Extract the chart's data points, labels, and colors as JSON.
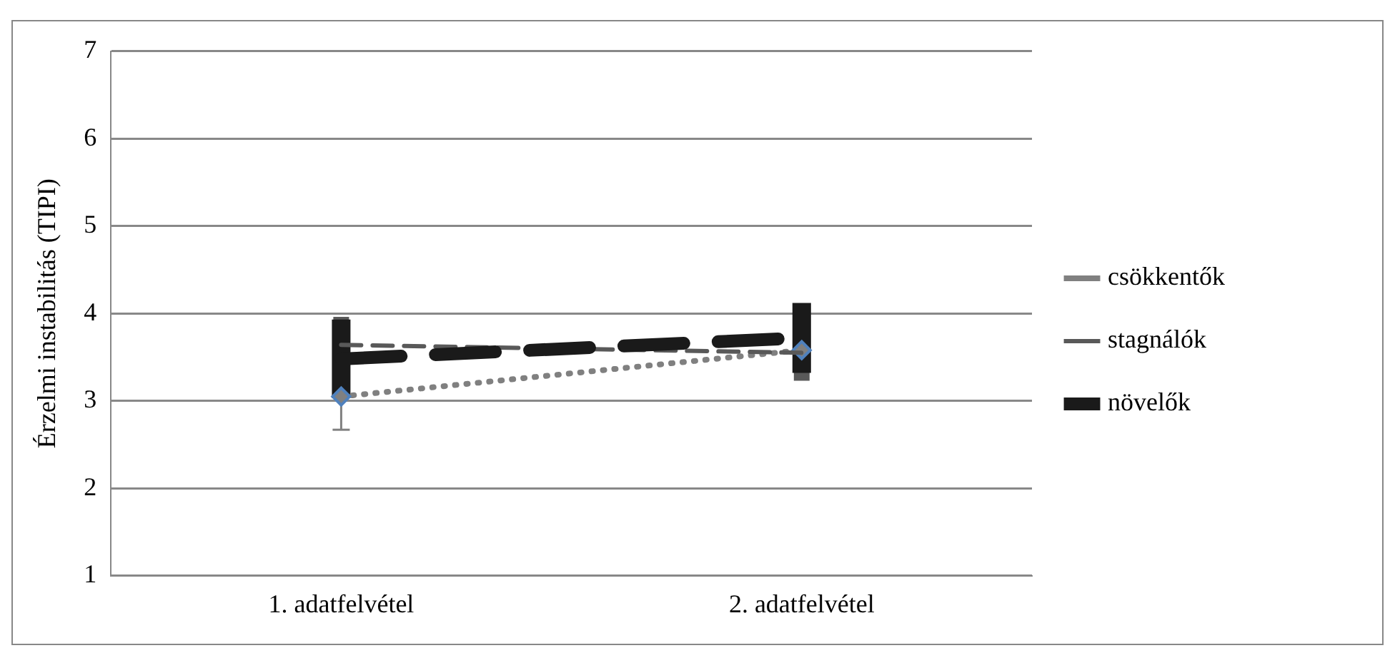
{
  "chart_data": {
    "type": "line",
    "ylabel": "Érzelmi instabilitás (TIPI)",
    "categories": [
      "1. adatfelvétel",
      "2. adatfelvétel"
    ],
    "series": [
      {
        "name": "csökkentők",
        "color": "#808080",
        "values": [
          3.05,
          3.58
        ],
        "errors": [
          0.38,
          null
        ],
        "line_style": "dotted",
        "marker": "diamond"
      },
      {
        "name": "stagnálók",
        "color": "#595959",
        "values": [
          3.64,
          3.55
        ],
        "errors": [
          0.32,
          0.32
        ],
        "line_style": "dashed",
        "marker": "none"
      },
      {
        "name": "növelők",
        "color": "#1a1a1a",
        "values": [
          3.48,
          3.72
        ],
        "errors": [
          0.45,
          0.4
        ],
        "line_style": "dashed",
        "marker": "none"
      }
    ],
    "ylim": [
      1,
      7
    ],
    "yticks": [
      1,
      2,
      3,
      4,
      5,
      6,
      7
    ],
    "grid": "y",
    "legend": "right"
  }
}
